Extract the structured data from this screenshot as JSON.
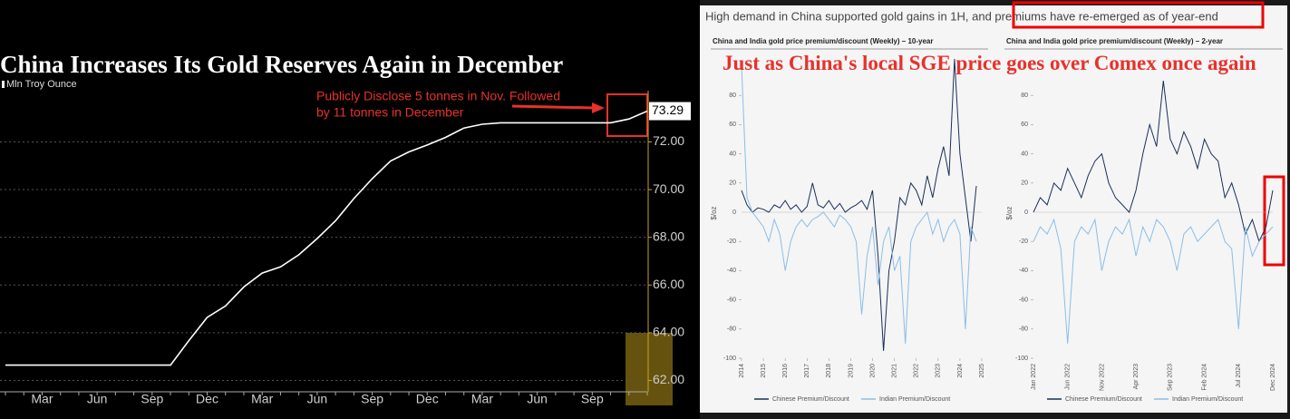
{
  "chart_data": [
    {
      "type": "line",
      "title": "China Increases Its Gold Reserves Again in December",
      "ylabel": "Mln Troy Ounce",
      "annotation": [
        "Publicly Disclose 5 tonnes in Nov. Followed",
        "by 11 tonnes in December"
      ],
      "end_label": "73.29",
      "color": "#ffffff",
      "categories": [
        null,
        null,
        "Mar",
        null,
        null,
        "Jun",
        null,
        null,
        "Sep",
        null,
        null,
        "Dec",
        null,
        null,
        "Mar",
        null,
        null,
        "Jun",
        null,
        null,
        "Sep",
        null,
        null,
        "Dec",
        null,
        null,
        "Mar",
        null,
        null,
        "Jun",
        null,
        null,
        "Sep",
        null,
        null,
        null
      ],
      "values": [
        62.64,
        62.64,
        62.64,
        62.64,
        62.64,
        62.64,
        62.64,
        62.64,
        62.64,
        62.64,
        63.67,
        64.64,
        65.12,
        65.92,
        66.5,
        66.76,
        67.27,
        67.95,
        68.69,
        69.62,
        70.46,
        71.2,
        71.58,
        71.87,
        72.19,
        72.58,
        72.74,
        72.8,
        72.8,
        72.8,
        72.8,
        72.8,
        72.8,
        72.8,
        72.96,
        73.29
      ],
      "ylim": [
        61.6,
        74.8
      ],
      "yticks": [
        {
          "value": 62,
          "label": "62.00"
        },
        {
          "value": 64,
          "label": "64.00"
        },
        {
          "value": 66,
          "label": "66.00"
        },
        {
          "value": 68,
          "label": "68.00"
        },
        {
          "value": 70,
          "label": "70.00"
        },
        {
          "value": 72,
          "label": "72.00"
        }
      ],
      "grid": true
    },
    {
      "type": "line",
      "title": "China and India gold price premium/discount (Weekly) – 10-year",
      "ylabel": "$/oz",
      "x": [
        2014,
        2014.25,
        2014.5,
        2014.75,
        2015,
        2015.25,
        2015.5,
        2015.75,
        2016,
        2016.25,
        2016.5,
        2016.75,
        2017,
        2017.25,
        2017.5,
        2017.75,
        2018,
        2018.25,
        2018.5,
        2018.75,
        2019,
        2019.25,
        2019.5,
        2019.75,
        2020,
        2020.25,
        2020.5,
        2020.75,
        2021,
        2021.25,
        2021.5,
        2021.75,
        2022,
        2022.25,
        2022.5,
        2022.75,
        2023,
        2023.25,
        2023.5,
        2023.75,
        2024,
        2024.25,
        2024.5,
        2024.75
      ],
      "xlim": [
        2014,
        2025
      ],
      "xticks": [
        2014,
        2015,
        2016,
        2017,
        2018,
        2019,
        2020,
        2021,
        2022,
        2023,
        2024,
        2025
      ],
      "ylim": [
        -100,
        100
      ],
      "yticks": [
        -100,
        -80,
        -60,
        -40,
        -20,
        0,
        20,
        40,
        60,
        80
      ],
      "series": [
        {
          "name": "Chinese Premium/Discount",
          "color": "#1a2f5a",
          "values": [
            15,
            5,
            0,
            3,
            2,
            0,
            5,
            3,
            8,
            2,
            5,
            0,
            4,
            20,
            5,
            3,
            8,
            2,
            6,
            0,
            3,
            5,
            8,
            2,
            15,
            -30,
            -95,
            -40,
            -20,
            10,
            5,
            20,
            15,
            5,
            25,
            10,
            30,
            45,
            25,
            105,
            40,
            10,
            -20,
            18
          ]
        },
        {
          "name": "Indian Premium/Discount",
          "color": "#8bbde6",
          "values": [
            100,
            10,
            0,
            -5,
            -10,
            -20,
            -5,
            -15,
            -40,
            -20,
            -10,
            -5,
            -10,
            -5,
            -3,
            0,
            -5,
            -10,
            -2,
            -5,
            -10,
            -20,
            -70,
            -30,
            -10,
            -50,
            -20,
            -10,
            -40,
            -30,
            -90,
            -20,
            -10,
            -5,
            0,
            -15,
            -5,
            -20,
            -10,
            -5,
            -15,
            -80,
            -10,
            -20
          ]
        }
      ]
    },
    {
      "type": "line",
      "title": "China and India gold price premium/discount (Weekly) – 2-year",
      "ylabel": "$/oz",
      "categories": [
        "Jan 2022",
        null,
        null,
        null,
        null,
        "Jun 2022",
        null,
        null,
        null,
        null,
        "Nov 2022",
        null,
        null,
        null,
        null,
        "Apr 2023",
        null,
        null,
        null,
        null,
        "Sep 2023",
        null,
        null,
        null,
        null,
        "Feb 2024",
        null,
        null,
        null,
        null,
        "Jul 2024",
        null,
        null,
        null,
        null,
        "Dec 2024"
      ],
      "ylim": [
        -100,
        100
      ],
      "yticks": [
        -100,
        -80,
        -60,
        -40,
        -20,
        0,
        20,
        40,
        60,
        80
      ],
      "series": [
        {
          "name": "Chinese Premium/Discount",
          "color": "#1a2f5a",
          "values": [
            0,
            10,
            5,
            20,
            15,
            30,
            20,
            10,
            25,
            35,
            40,
            20,
            10,
            5,
            0,
            15,
            40,
            60,
            45,
            90,
            50,
            40,
            55,
            45,
            30,
            50,
            40,
            35,
            10,
            20,
            5,
            -15,
            -5,
            -20,
            -10,
            15
          ]
        },
        {
          "name": "Indian Premium/Discount",
          "color": "#8bbde6",
          "values": [
            -20,
            -10,
            -15,
            -5,
            -25,
            -90,
            -20,
            -10,
            -15,
            -5,
            -40,
            -20,
            -10,
            -15,
            -5,
            -30,
            -10,
            -20,
            -5,
            -10,
            -20,
            -40,
            -15,
            -10,
            -20,
            -15,
            -10,
            -5,
            -20,
            -25,
            -80,
            -10,
            -30,
            -20,
            -15,
            -10
          ]
        }
      ]
    }
  ],
  "panel": {
    "header": "High demand in China supported gold gains in 1H, and premiums have re-emerged as of year-end",
    "overlay_text": "Just as China's local SGE price goes over Comex once again"
  }
}
